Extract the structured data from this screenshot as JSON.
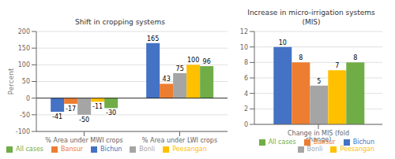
{
  "chart_data": [
    {
      "type": "bar",
      "title": "Shift in cropping systems",
      "categories": [
        "% Area under MWI crops",
        "% Area under LWI crops"
      ],
      "series": [
        {
          "name": "Bichun",
          "color": "#4472C4",
          "values": [
            -41,
            165
          ]
        },
        {
          "name": "Bansur",
          "color": "#ED7D31",
          "values": [
            -17,
            43
          ]
        },
        {
          "name": "Bonli",
          "color": "#A5A5A5",
          "values": [
            -50,
            75
          ]
        },
        {
          "name": "Peesangan",
          "color": "#FFC000",
          "values": [
            -11,
            100
          ]
        },
        {
          "name": "All cases",
          "color": "#70AD47",
          "values": [
            -30,
            96
          ]
        }
      ],
      "ylabel": "Percent",
      "ylim": [
        -100,
        200
      ],
      "yticks": [
        -100,
        -50,
        0,
        50,
        100,
        150,
        200
      ],
      "grid": true,
      "data_labels": true,
      "legend": "lower left"
    },
    {
      "type": "bar",
      "title": "Increase in micro-irrigation systems\n(MIS)",
      "categories": [
        "Change in MIS (fold change)"
      ],
      "series": [
        {
          "name": "Bichun",
          "color": "#4472C4",
          "values": [
            10
          ]
        },
        {
          "name": "Bansur",
          "color": "#ED7D31",
          "values": [
            8
          ]
        },
        {
          "name": "Bonli",
          "color": "#A5A5A5",
          "values": [
            5
          ]
        },
        {
          "name": "Peesangan",
          "color": "#FFC000",
          "values": [
            7
          ]
        },
        {
          "name": "All cases",
          "color": "#70AD47",
          "values": [
            8
          ]
        }
      ],
      "ylim": [
        0,
        12
      ],
      "yticks": [
        0,
        2,
        4,
        6,
        8,
        10,
        12
      ],
      "grid": true,
      "data_labels": true,
      "legend": "lower right"
    }
  ]
}
